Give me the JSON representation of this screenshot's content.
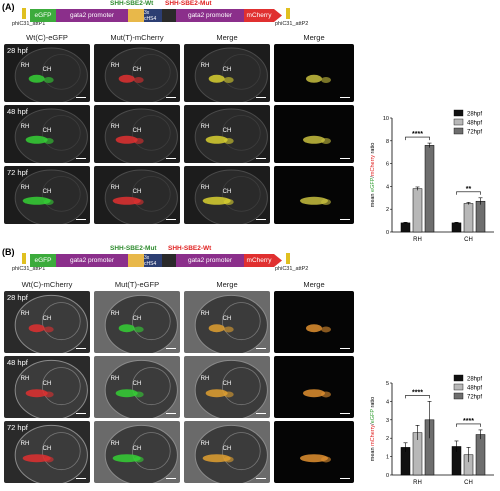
{
  "panel_a": {
    "label": "(A)",
    "construct": {
      "att_left": "phiC31_attP1",
      "att_right": "phiC31_attP2",
      "segments": [
        "eGFP",
        "gata2 promoter",
        "3x cHS4",
        "gata2 promoter",
        "mCherry"
      ],
      "site_left": "SHH-SBE2-Wt",
      "site_right": "SHH-SBE2-Mut",
      "site_left_color": "#2e8b2e",
      "site_right_color": "#e02020"
    },
    "columns": [
      "Wt(C)-eGFP",
      "Mut(T)-mCherry",
      "Merge",
      "Merge"
    ],
    "rows": [
      "28 hpf",
      "48 hpf",
      "72 hpf"
    ],
    "tile_labels": {
      "rh": "RH",
      "ch": "CH"
    }
  },
  "panel_b": {
    "label": "(B)",
    "construct": {
      "att_left": "phiC31_attP1",
      "att_right": "phiC31_attP2",
      "segments": [
        "eGFP",
        "gata2 promoter",
        "3x cHS4",
        "gata2 promoter",
        "mCherry"
      ],
      "site_left": "SHH-SBE2-Mut",
      "site_right": "SHH-SBE2-Wt",
      "site_left_color": "#2e8b2e",
      "site_right_color": "#e02020"
    },
    "columns": [
      "Wt(C)-mCherry",
      "Mut(T)-eGFP",
      "Merge",
      "Merge"
    ],
    "rows": [
      "28 hpf",
      "48 hpf",
      "72 hpf"
    ],
    "tile_labels": {
      "rh": "RH",
      "ch": "CH"
    }
  },
  "chart_data": [
    {
      "type": "bar",
      "categories": [
        "RH",
        "CH"
      ],
      "series": [
        {
          "name": "28hpf",
          "values": [
            0.8,
            0.8
          ],
          "errors": [
            0.05,
            0.05
          ],
          "color": "#111111"
        },
        {
          "name": "48hpf",
          "values": [
            3.8,
            2.5
          ],
          "errors": [
            0.15,
            0.1
          ],
          "color": "#b8b8b8"
        },
        {
          "name": "72hpf",
          "values": [
            7.6,
            2.7
          ],
          "errors": [
            0.2,
            0.3
          ],
          "color": "#6e6e6e"
        }
      ],
      "ylabel_parts": [
        "mean ",
        "eGFP",
        "/",
        "mCherry",
        " ratio"
      ],
      "ylabel_colors": [
        "#000000",
        "#2e9b2e",
        "#000000",
        "#e02020",
        "#000000"
      ],
      "yticks": [
        0,
        2,
        4,
        6,
        8,
        10
      ],
      "ylim": [
        0,
        10
      ],
      "significance": [
        "****",
        "**"
      ],
      "legend_position": "top-right"
    },
    {
      "type": "bar",
      "categories": [
        "RH",
        "CH"
      ],
      "series": [
        {
          "name": "28hpf",
          "values": [
            1.5,
            1.55
          ],
          "errors": [
            0.25,
            0.3
          ],
          "color": "#111111"
        },
        {
          "name": "48hpf",
          "values": [
            2.3,
            1.1
          ],
          "errors": [
            0.4,
            0.4
          ],
          "color": "#b8b8b8"
        },
        {
          "name": "72hpf",
          "values": [
            3.0,
            2.2
          ],
          "errors": [
            1.0,
            0.25
          ],
          "color": "#6e6e6e"
        }
      ],
      "ylabel_parts": [
        "mean ",
        "mCherry",
        "/",
        "eGFP",
        " ratio"
      ],
      "ylabel_colors": [
        "#000000",
        "#e02020",
        "#000000",
        "#2e9b2e",
        "#000000"
      ],
      "yticks": [
        0,
        1,
        2,
        3,
        4,
        5
      ],
      "ylim": [
        0,
        5
      ],
      "significance": [
        "****",
        "****"
      ],
      "legend_position": "top-right"
    }
  ]
}
